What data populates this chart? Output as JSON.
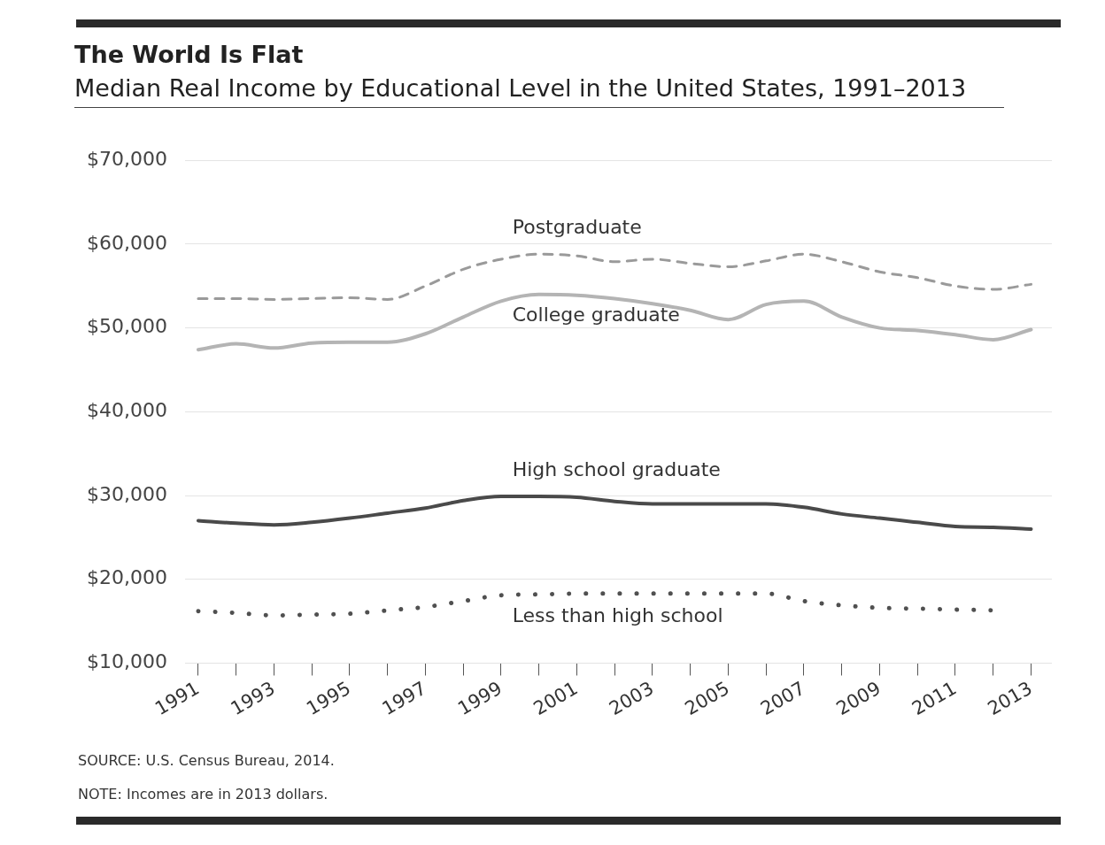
{
  "chart_data": {
    "type": "line",
    "title": "The World Is Flat",
    "subtitle": "Median Real Income by Educational Level in the United States, 1991–2013",
    "x": [
      1991,
      1992,
      1993,
      1994,
      1995,
      1996,
      1997,
      1998,
      1999,
      2000,
      2001,
      2002,
      2003,
      2004,
      2005,
      2006,
      2007,
      2008,
      2009,
      2010,
      2011,
      2012,
      2013
    ],
    "series": [
      {
        "name": "Postgraduate",
        "color": "#9a9a9a",
        "line_style": "dashed",
        "values": [
          53500,
          53500,
          53400,
          53500,
          53600,
          53400,
          55000,
          57000,
          58200,
          58800,
          58600,
          57900,
          58200,
          57700,
          57300,
          58000,
          58800,
          57900,
          56700,
          56000,
          55000,
          54600,
          55200
        ]
      },
      {
        "name": "College graduate",
        "color": "#b4b4b4",
        "line_style": "solid",
        "values": [
          47400,
          48100,
          47600,
          48200,
          48300,
          48300,
          49300,
          51300,
          53200,
          54000,
          53900,
          53500,
          52900,
          52100,
          51000,
          52800,
          53200,
          51300,
          50000,
          49700,
          49200,
          48600,
          49800
        ]
      },
      {
        "name": "High school graduate",
        "color": "#4a4a4a",
        "line_style": "solid",
        "values": [
          27000,
          26700,
          26500,
          26800,
          27300,
          27900,
          28500,
          29400,
          29900,
          29900,
          29800,
          29300,
          29000,
          29000,
          29000,
          29000,
          28600,
          27800,
          27300,
          26800,
          26300,
          26200,
          26000
        ]
      },
      {
        "name": "Less than high school",
        "color": "#505050",
        "line_style": "dotted",
        "values": [
          16200,
          16000,
          15700,
          15800,
          15900,
          16300,
          16700,
          17400,
          18100,
          18200,
          18300,
          18300,
          18300,
          18300,
          18300,
          18300,
          17400,
          16900,
          16600,
          16500,
          16400,
          16300,
          null
        ]
      }
    ],
    "xlim": [
      1990.65,
      2013.55
    ],
    "xticks": [
      1991,
      {
        "value": 1992,
        "label": null
      },
      1993,
      {
        "value": 1994,
        "label": null
      },
      1995,
      {
        "value": 1996,
        "label": null
      },
      1997,
      {
        "value": 1998,
        "label": null
      },
      1999,
      {
        "value": 2000,
        "label": null
      },
      2001,
      {
        "value": 2002,
        "label": null
      },
      2003,
      {
        "value": 2004,
        "label": null
      },
      2005,
      {
        "value": 2006,
        "label": null
      },
      2007,
      {
        "value": 2008,
        "label": null
      },
      2009,
      {
        "value": 2010,
        "label": null
      },
      2011,
      {
        "value": 2012,
        "label": null
      },
      2013
    ],
    "ylim": [
      10000,
      70000
    ],
    "yticks": [
      {
        "value": 10000,
        "label": "$10,000"
      },
      {
        "value": 20000,
        "label": "$20,000"
      },
      {
        "value": 30000,
        "label": "$30,000"
      },
      {
        "value": 40000,
        "label": "$40,000"
      },
      {
        "value": 50000,
        "label": "$50,000"
      },
      {
        "value": 60000,
        "label": "$60,000"
      },
      {
        "value": 70000,
        "label": "$70,000"
      }
    ],
    "grid": "y",
    "legend": false,
    "marker": "none",
    "annotations": [
      "SOURCE: U.S. Census Bureau, 2014.",
      "NOTE: Incomes are in 2013 dollars."
    ]
  }
}
